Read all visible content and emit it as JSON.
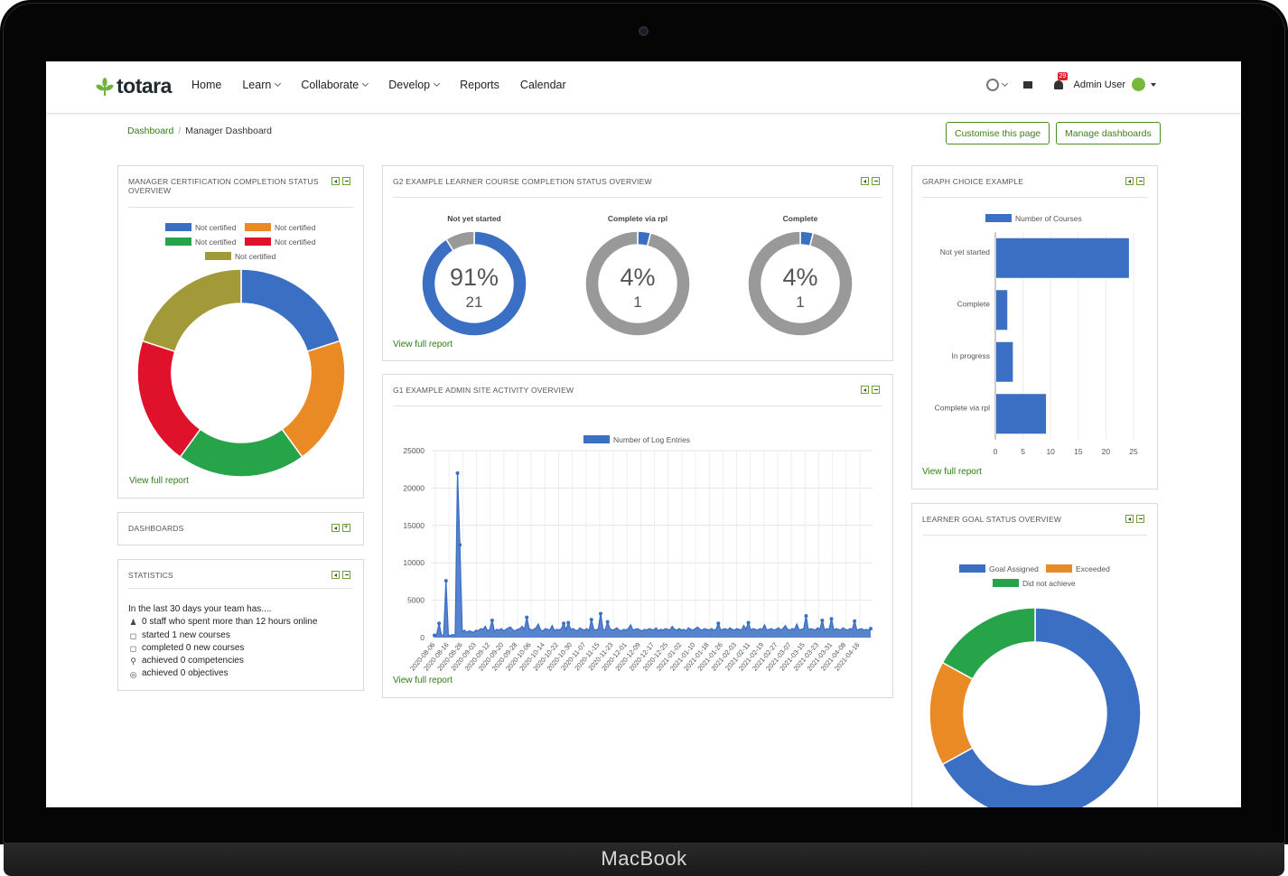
{
  "device_label": "MacBook",
  "header": {
    "logo": "totara",
    "nav": [
      {
        "label": "Home",
        "dropdown": false
      },
      {
        "label": "Learn",
        "dropdown": true
      },
      {
        "label": "Collaborate",
        "dropdown": true
      },
      {
        "label": "Develop",
        "dropdown": true
      },
      {
        "label": "Reports",
        "dropdown": false
      },
      {
        "label": "Calendar",
        "dropdown": false
      }
    ],
    "notification_count": "29",
    "user_name": "Admin User"
  },
  "breadcrumb": {
    "root": "Dashboard",
    "current": "Manager Dashboard"
  },
  "buttons": {
    "customise": "Customise this page",
    "manage": "Manage dashboards"
  },
  "colors": {
    "blue": "#3a6fc4",
    "orange": "#e98a24",
    "green": "#27a34a",
    "red": "#e0112b",
    "olive": "#a29a39",
    "grey": "#999999",
    "link_green": "#2e7d10"
  },
  "blocks": {
    "cert": {
      "title": "MANAGER CERTIFICATION COMPLETION STATUS OVERVIEW",
      "legend": [
        "Not certified",
        "Not certified",
        "Not certified",
        "Not certified",
        "Not certified"
      ],
      "view_link": "View full report"
    },
    "g2": {
      "title": "G2 EXAMPLE LEARNER COURSE COMPLETION STATUS OVERVIEW",
      "gauges": [
        {
          "label": "Not yet started",
          "percent": "91%",
          "count": "21",
          "fraction": 0.91
        },
        {
          "label": "Complete via rpl",
          "percent": "4%",
          "count": "1",
          "fraction": 0.04
        },
        {
          "label": "Complete",
          "percent": "4%",
          "count": "1",
          "fraction": 0.04
        }
      ],
      "view_link": "View full report"
    },
    "g1": {
      "title": "G1 EXAMPLE ADMIN SITE ACTIVITY OVERVIEW",
      "view_link": "View full report"
    },
    "graph_choice": {
      "title": "GRAPH CHOICE EXAMPLE",
      "view_link": "View full report"
    },
    "dashboards": {
      "title": "DASHBOARDS"
    },
    "statistics": {
      "title": "STATISTICS",
      "intro": "In the last 30 days your team has....",
      "lines": [
        "0 staff who spent more than 12 hours online",
        "started 1 new courses",
        "completed 0 new courses",
        "achieved 0 competencies",
        "achieved 0 objectives"
      ]
    },
    "goal": {
      "title": "LEARNER GOAL STATUS OVERVIEW",
      "legend": [
        "Goal Assigned",
        "Exceeded",
        "Did not achieve"
      ]
    }
  },
  "chart_data": [
    {
      "type": "pie",
      "title": "",
      "categories": [
        "Not certified",
        "Not certified",
        "Not certified",
        "Not certified",
        "Not certified"
      ],
      "values": [
        20,
        20,
        20,
        20,
        20
      ],
      "legend": "top"
    },
    {
      "type": "line",
      "title": "",
      "series": [
        {
          "name": "Number of Log Entries",
          "values": [
            300,
            400,
            1900,
            350,
            300,
            7600,
            300,
            300,
            400,
            300,
            22000,
            12400,
            800,
            1000,
            700,
            900,
            800,
            700,
            1000,
            900,
            1200,
            1100,
            1500,
            900,
            1100,
            2300,
            800,
            1100,
            1000,
            1200,
            900,
            1100,
            1300,
            1400,
            1000,
            900,
            1100,
            1200,
            1500,
            1100,
            2700,
            1200,
            1000,
            1100,
            1300,
            1800,
            1000,
            900,
            1200,
            1100,
            1000,
            1600,
            900,
            1100,
            1000,
            1200,
            1900,
            1000,
            2000,
            1100,
            1200,
            1000,
            900,
            1300,
            1100,
            1000,
            1200,
            900,
            2400,
            1100,
            1000,
            1200,
            3200,
            1100,
            1000,
            2100,
            1200,
            1000,
            1100,
            1300,
            1000,
            900,
            1100,
            1000,
            1200,
            1700,
            1000,
            1100,
            1200,
            1000,
            900,
            1100,
            1000,
            1200,
            1100,
            1000,
            1300,
            900,
            1100,
            1000,
            1200,
            1100,
            1000,
            1500,
            1100,
            1000,
            1200,
            1000,
            1100,
            900,
            1300,
            1100,
            1000,
            1200,
            1400,
            1100,
            1000,
            1200,
            1100,
            1000,
            1200,
            1000,
            1100,
            1900,
            1000,
            1100,
            1200,
            1000,
            1300,
            1100,
            1000,
            1200,
            1100,
            1000,
            1600,
            1100,
            2000,
            1000,
            1200,
            1100,
            1000,
            1200,
            1100,
            1700,
            1000,
            1100,
            1200,
            1000,
            1100,
            1300,
            1000,
            1200,
            1600,
            1100,
            1000,
            1200,
            1100,
            1800,
            1000,
            1100,
            1200,
            2900,
            1000,
            1200,
            1100,
            1000,
            1300,
            1100,
            2300,
            1000,
            1200,
            1100,
            2500,
            1000,
            1200,
            1100,
            1000,
            1300,
            1100,
            1000,
            1200,
            1100,
            2200,
            1000,
            1100,
            1200,
            1000,
            1100,
            1000,
            1200
          ]
        }
      ],
      "x_ticks": [
        "2020-08-06",
        "2020-08-16",
        "2020-08-26",
        "2020-09-03",
        "2020-09-12",
        "2020-09-20",
        "2020-09-28",
        "2020-10-06",
        "2020-10-14",
        "2020-10-22",
        "2020-10-30",
        "2020-11-07",
        "2020-11-15",
        "2020-11-23",
        "2020-12-01",
        "2020-12-09",
        "2020-12-17",
        "2020-12-25",
        "2021-01-02",
        "2021-01-10",
        "2021-01-18",
        "2021-01-26",
        "2021-02-03",
        "2021-02-11",
        "2021-02-19",
        "2021-02-27",
        "2021-03-07",
        "2021-03-15",
        "2021-03-23",
        "2021-03-31",
        "2021-04-08",
        "2021-04-16"
      ],
      "y_ticks": [
        0,
        5000,
        10000,
        15000,
        20000,
        25000
      ],
      "ylim": [
        0,
        25000
      ],
      "legend": "top",
      "grid": true
    },
    {
      "type": "bar",
      "orientation": "horizontal",
      "title": "",
      "categories": [
        "Not yet started",
        "Complete",
        "In progress",
        "Complete via rpl"
      ],
      "series": [
        {
          "name": "Number of Courses",
          "values": [
            24,
            2,
            3,
            9
          ]
        }
      ],
      "x_ticks": [
        0,
        5,
        10,
        15,
        20,
        25
      ],
      "xlim": [
        0,
        25
      ],
      "legend": "top"
    },
    {
      "type": "pie",
      "title": "",
      "categories": [
        "Goal Assigned",
        "Exceeded",
        "Did not achieve"
      ],
      "values": [
        67,
        16,
        17
      ],
      "legend": "top"
    }
  ]
}
